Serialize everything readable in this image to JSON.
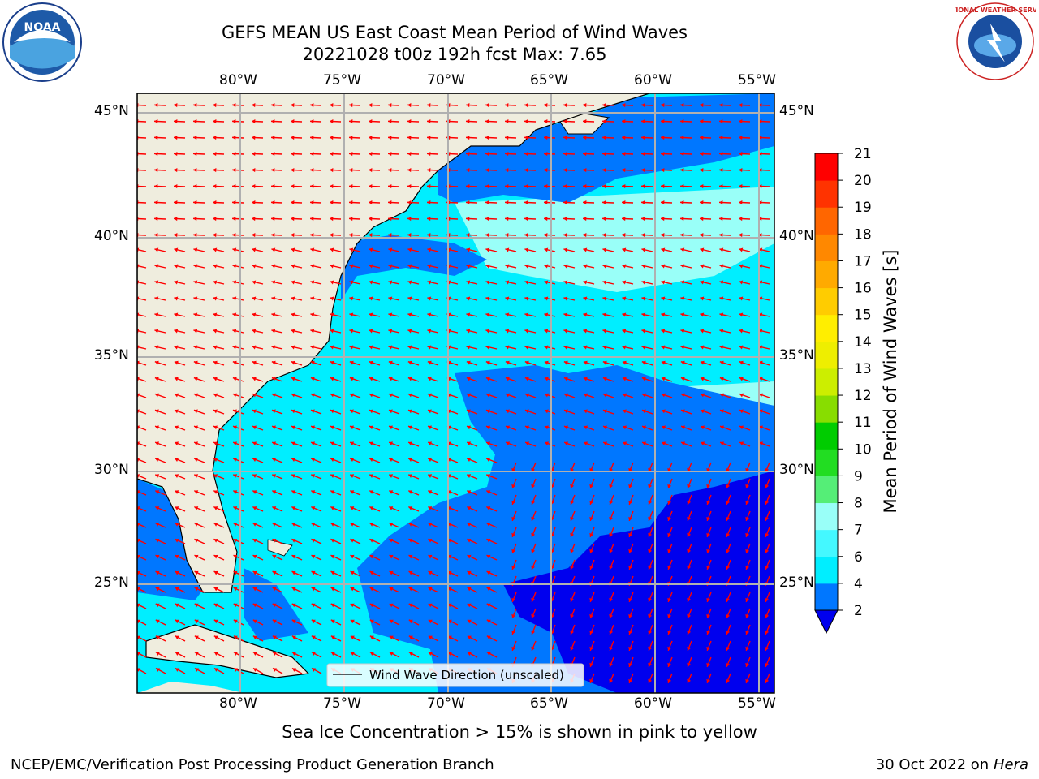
{
  "header": {
    "title_line1": "GEFS MEAN US East Coast Mean Period of Wind Waves",
    "title_line2": "20221028 t00z 192h fcst   Max: 7.65"
  },
  "map": {
    "lon_labels": [
      "80°W",
      "75°W",
      "70°W",
      "65°W",
      "60°W",
      "55°W"
    ],
    "lat_labels": [
      "45°N",
      "40°N",
      "35°N",
      "30°N",
      "25°N"
    ],
    "legend_label": "Wind Wave Direction (unscaled)",
    "arrow_color": "#ff0000",
    "land_color": "#efedde"
  },
  "colorbar": {
    "title": "Mean Period of Wind Waves [s]",
    "ticks": [
      "2",
      "4",
      "6",
      "7",
      "8",
      "9",
      "10",
      "11",
      "12",
      "13",
      "14",
      "15",
      "16",
      "17",
      "18",
      "19",
      "20",
      "21"
    ],
    "colors": [
      "#0000ee",
      "#0077ff",
      "#00eeff",
      "#44f8ff",
      "#99fff8",
      "#55ee77",
      "#22dd22",
      "#00cc00",
      "#88dd00",
      "#ccee00",
      "#eeee00",
      "#ffee00",
      "#ffcc00",
      "#ffaa00",
      "#ff8800",
      "#ff6600",
      "#ff3300",
      "#ff0000"
    ]
  },
  "footer": {
    "subnote": "Sea Ice Concentration > 15% is shown in pink to yellow",
    "left": "NCEP/EMC/Verification Post Processing Product Generation Branch",
    "right_date": "30 Oct 2022 on",
    "right_host": "Hera"
  },
  "logos": {
    "noaa_text": "NOAA",
    "nws_text": "NATIONAL WEATHER SERVICE"
  }
}
